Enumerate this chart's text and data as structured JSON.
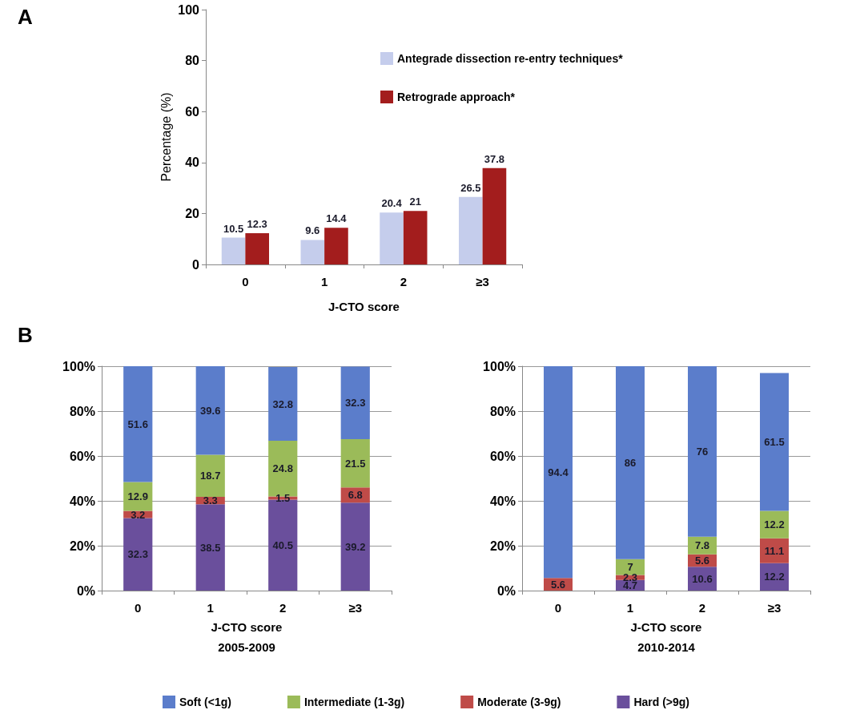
{
  "chart_data": [
    {
      "type": "bar",
      "annotations": [
        "A"
      ],
      "xlabel": "J-CTO score",
      "ylabel": "Percentage (%)",
      "categories": [
        "0",
        "1",
        "2",
        "≥3"
      ],
      "series": [
        {
          "name": "Antegrade dissection re-entry techniques*",
          "color": "#c5cdec",
          "values": [
            10.5,
            9.6,
            20.4,
            26.5
          ]
        },
        {
          "name": "Retrograde approach*",
          "color": "#a31d1d",
          "values": [
            12.3,
            14.4,
            21,
            37.8
          ]
        }
      ],
      "ylim": [
        0,
        100
      ],
      "yticks": [
        0,
        20,
        40,
        60,
        80,
        100
      ],
      "grid": false,
      "legend": "top",
      "data_labels": true
    },
    {
      "type": "bar",
      "annotations": [
        "B"
      ],
      "title": "2005-2009",
      "xlabel": "J-CTO score",
      "categories": [
        "0",
        "1",
        "2",
        "≥3"
      ],
      "stacked": true,
      "series": [
        {
          "color": "#6a4f9c",
          "values": [
            32.3,
            38.5,
            40.5,
            39.2
          ]
        },
        {
          "color": "#bf4b48",
          "values": [
            3.2,
            3.3,
            1.5,
            6.8
          ]
        },
        {
          "color": "#9bbb59",
          "values": [
            12.9,
            18.7,
            24.8,
            21.5
          ]
        },
        {
          "color": "#5b7dcb",
          "values": [
            51.6,
            39.6,
            32.8,
            32.3
          ]
        }
      ],
      "ylim": [
        0,
        100
      ],
      "yticks": [
        {
          "value": 0,
          "label": "0%"
        },
        {
          "value": 20,
          "label": "20%"
        },
        {
          "value": 40,
          "label": "40%"
        },
        {
          "value": 60,
          "label": "60%"
        },
        {
          "value": 80,
          "label": "80%"
        },
        {
          "value": 100,
          "label": "100%"
        }
      ],
      "grid": "y",
      "legend": false,
      "data_labels": true
    },
    {
      "type": "bar",
      "title": "2010-2014",
      "xlabel": "J-CTO score",
      "categories": [
        "0",
        "1",
        "2",
        "≥3"
      ],
      "stacked": true,
      "series": [
        {
          "name": "Hard (>9g)",
          "color": "#6a4f9c",
          "values": [
            null,
            4.7,
            10.6,
            12.2
          ]
        },
        {
          "name": "Moderate (3-9g)",
          "color": "#bf4b48",
          "values": [
            5.6,
            2.3,
            5.6,
            11.1
          ]
        },
        {
          "name": "Intermediate (1-3g)",
          "color": "#9bbb59",
          "values": [
            null,
            7,
            7.8,
            12.2
          ]
        },
        {
          "name": "Soft (<1g)",
          "color": "#5b7dcb",
          "values": [
            94.4,
            86,
            76,
            61.5
          ]
        }
      ],
      "ylim": [
        0,
        100
      ],
      "yticks": [
        {
          "value": 0,
          "label": "0%"
        },
        {
          "value": 20,
          "label": "20%"
        },
        {
          "value": 40,
          "label": "40%"
        },
        {
          "value": 60,
          "label": "60%"
        },
        {
          "value": 80,
          "label": "80%"
        },
        {
          "value": 100,
          "label": "100%"
        }
      ],
      "grid": "y",
      "legend": "bottom",
      "data_labels": true
    }
  ]
}
